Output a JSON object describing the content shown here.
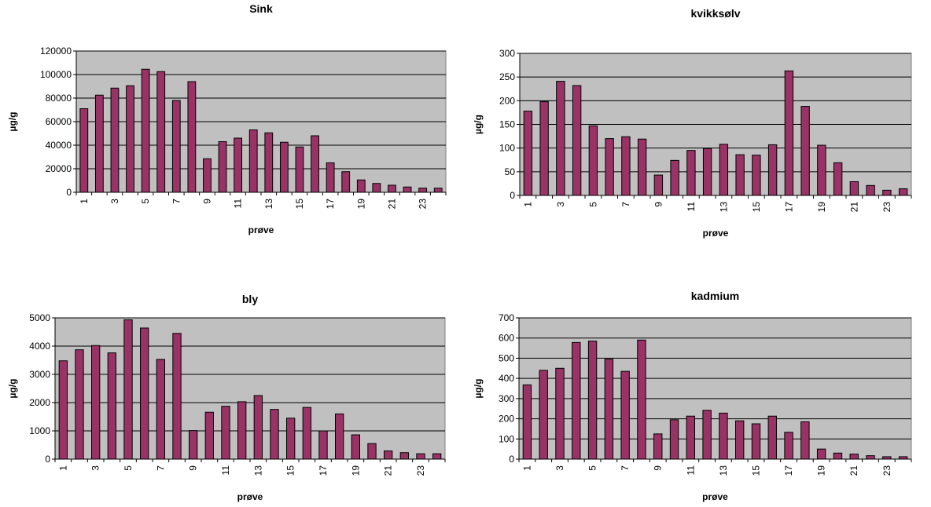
{
  "chart_data": [
    {
      "type": "bar",
      "title": "Sink",
      "xlabel": "prøve",
      "ylabel": "µg/g",
      "categories": [
        "1",
        "2",
        "3",
        "4",
        "5",
        "6",
        "7",
        "8",
        "9",
        "10",
        "11",
        "12",
        "13",
        "14",
        "15",
        "16",
        "17",
        "18",
        "19",
        "20",
        "21",
        "22",
        "23",
        "24"
      ],
      "x_tick_labels": [
        "1",
        "3",
        "5",
        "7",
        "9",
        "11",
        "13",
        "15",
        "17",
        "19",
        "21",
        "23"
      ],
      "y_tick_labels": [
        "0",
        "20000",
        "40000",
        "60000",
        "80000",
        "100000",
        "120000"
      ],
      "values": [
        71000,
        82500,
        88500,
        90500,
        104500,
        102500,
        78000,
        94000,
        28500,
        43000,
        46000,
        53000,
        50500,
        42500,
        38500,
        48000,
        25000,
        17500,
        10500,
        7500,
        6000,
        4500,
        3500,
        3500
      ],
      "ylim": [
        0,
        120000
      ],
      "ytick_step": 20000,
      "bar_color": "#993366",
      "plot_bg": "#c0c0c0",
      "grid": true,
      "legend": "none"
    },
    {
      "type": "bar",
      "title": "kvikksølv",
      "xlabel": "prøve",
      "ylabel": "µg/g",
      "categories": [
        "1",
        "2",
        "3",
        "4",
        "5",
        "6",
        "7",
        "8",
        "9",
        "10",
        "11",
        "12",
        "13",
        "14",
        "15",
        "16",
        "17",
        "18",
        "19",
        "20",
        "21",
        "22",
        "23",
        "24"
      ],
      "x_tick_labels": [
        "1",
        "3",
        "5",
        "7",
        "9",
        "11",
        "13",
        "15",
        "17",
        "19",
        "21",
        "23"
      ],
      "y_tick_labels": [
        "0",
        "50",
        "100",
        "150",
        "200",
        "250",
        "300"
      ],
      "values": [
        178,
        198,
        241,
        232,
        147,
        120,
        124,
        119,
        43,
        74,
        95,
        99,
        108,
        86,
        85,
        107,
        263,
        188,
        106,
        69,
        29,
        21,
        11,
        14
      ],
      "ylim": [
        0,
        300
      ],
      "ytick_step": 50,
      "bar_color": "#993366",
      "plot_bg": "#c0c0c0",
      "grid": true,
      "legend": "none"
    },
    {
      "type": "bar",
      "title": "bly",
      "xlabel": "prøve",
      "ylabel": "µg/g",
      "categories": [
        "1",
        "2",
        "3",
        "4",
        "5",
        "6",
        "7",
        "8",
        "9",
        "10",
        "11",
        "12",
        "13",
        "14",
        "15",
        "16",
        "17",
        "18",
        "19",
        "20",
        "21",
        "22",
        "23",
        "24"
      ],
      "x_tick_labels": [
        "1",
        "3",
        "5",
        "7",
        "9",
        "11",
        "13",
        "15",
        "17",
        "19",
        "21",
        "23"
      ],
      "y_tick_labels": [
        "0",
        "1000",
        "2000",
        "3000",
        "4000",
        "5000"
      ],
      "values": [
        3480,
        3870,
        4020,
        3760,
        4930,
        4640,
        3530,
        4450,
        1010,
        1660,
        1870,
        2030,
        2250,
        1760,
        1450,
        1830,
        1000,
        1600,
        860,
        550,
        290,
        230,
        190,
        190
      ],
      "ylim": [
        0,
        5000
      ],
      "ytick_step": 1000,
      "bar_color": "#993366",
      "plot_bg": "#c0c0c0",
      "grid": true,
      "legend": "none"
    },
    {
      "type": "bar",
      "title": "kadmium",
      "xlabel": "prøve",
      "ylabel": "µg/g",
      "categories": [
        "1",
        "2",
        "3",
        "4",
        "5",
        "6",
        "7",
        "8",
        "9",
        "10",
        "11",
        "12",
        "13",
        "14",
        "15",
        "16",
        "17",
        "18",
        "19",
        "20",
        "21",
        "22",
        "23",
        "24"
      ],
      "x_tick_labels": [
        "1",
        "3",
        "5",
        "7",
        "9",
        "11",
        "13",
        "15",
        "17",
        "19",
        "21",
        "23"
      ],
      "y_tick_labels": [
        "0",
        "100",
        "200",
        "300",
        "400",
        "500",
        "600",
        "700"
      ],
      "values": [
        368,
        440,
        450,
        578,
        585,
        495,
        435,
        590,
        125,
        195,
        213,
        242,
        228,
        190,
        175,
        213,
        133,
        185,
        50,
        30,
        25,
        17,
        12,
        12
      ],
      "ylim": [
        0,
        700
      ],
      "ytick_step": 100,
      "bar_color": "#993366",
      "plot_bg": "#c0c0c0",
      "grid": true,
      "legend": "none"
    }
  ]
}
